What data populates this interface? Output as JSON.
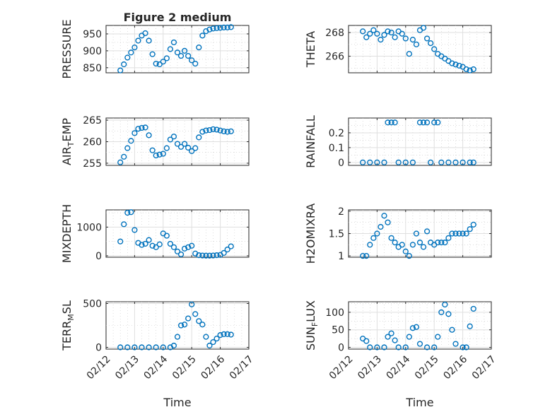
{
  "figure": {
    "title": "Figure 2 medium",
    "xlabel": "Time"
  },
  "colors": {
    "series": "#0072bd",
    "axis": "#262626"
  },
  "chart_data": [
    {
      "id": "pressure",
      "type": "scatter",
      "ylabel": "PRESSURE",
      "ylabel_sub": "",
      "xlim": [
        "02/12",
        "02/17"
      ],
      "ylim": [
        835,
        975
      ],
      "yticks": [
        850,
        900,
        950
      ],
      "xticks": [
        "02/12",
        "02/13",
        "02/14",
        "02/15",
        "02/16",
        "02/17"
      ],
      "show_xticklabels": false,
      "x": [
        "02/12 12:00",
        "02/12 15:00",
        "02/12 18:00",
        "02/12 21:00",
        "02/13 00:00",
        "02/13 03:00",
        "02/13 06:00",
        "02/13 09:00",
        "02/13 12:00",
        "02/13 15:00",
        "02/13 18:00",
        "02/13 21:00",
        "02/14 00:00",
        "02/14 03:00",
        "02/14 06:00",
        "02/14 09:00",
        "02/14 12:00",
        "02/14 15:00",
        "02/14 18:00",
        "02/14 21:00",
        "02/15 00:00",
        "02/15 03:00",
        "02/15 06:00",
        "02/15 09:00",
        "02/15 12:00",
        "02/15 15:00",
        "02/15 18:00",
        "02/15 21:00",
        "02/16 00:00",
        "02/16 03:00",
        "02/16 06:00",
        "02/16 09:00"
      ],
      "y": [
        842,
        860,
        880,
        895,
        910,
        930,
        945,
        952,
        930,
        890,
        862,
        860,
        868,
        878,
        905,
        925,
        895,
        885,
        900,
        885,
        872,
        862,
        910,
        945,
        958,
        963,
        966,
        967,
        968,
        969,
        969,
        970
      ]
    },
    {
      "id": "theta",
      "type": "scatter",
      "ylabel": "THETA",
      "ylabel_sub": "",
      "xlim": [
        "02/12",
        "02/17"
      ],
      "ylim": [
        264.6,
        268.6
      ],
      "yticks": [
        266,
        268
      ],
      "xticks": [
        "02/12",
        "02/13",
        "02/14",
        "02/15",
        "02/16",
        "02/17"
      ],
      "show_xticklabels": false,
      "x": [
        "02/12 12:00",
        "02/12 15:00",
        "02/12 18:00",
        "02/12 21:00",
        "02/13 00:00",
        "02/13 03:00",
        "02/13 06:00",
        "02/13 09:00",
        "02/13 12:00",
        "02/13 15:00",
        "02/13 18:00",
        "02/13 21:00",
        "02/14 00:00",
        "02/14 03:00",
        "02/14 06:00",
        "02/14 09:00",
        "02/14 12:00",
        "02/14 15:00",
        "02/14 18:00",
        "02/14 21:00",
        "02/15 00:00",
        "02/15 03:00",
        "02/15 06:00",
        "02/15 09:00",
        "02/15 12:00",
        "02/15 15:00",
        "02/15 18:00",
        "02/15 21:00",
        "02/16 00:00",
        "02/16 03:00",
        "02/16 06:00",
        "02/16 09:00"
      ],
      "y": [
        268.1,
        267.6,
        267.9,
        268.2,
        267.9,
        267.4,
        267.8,
        268.1,
        268.0,
        267.6,
        268.1,
        267.9,
        267.5,
        266.2,
        267.4,
        267.0,
        268.2,
        268.4,
        267.5,
        267.1,
        266.6,
        266.2,
        266.0,
        265.8,
        265.6,
        265.4,
        265.3,
        265.2,
        265.1,
        264.9,
        264.8,
        264.9
      ]
    },
    {
      "id": "air-temp",
      "type": "scatter",
      "ylabel": "AIR",
      "ylabel_sub": "T",
      "ylabel_tail": "EMP",
      "xlim": [
        "02/12",
        "02/17"
      ],
      "ylim": [
        254.5,
        265.5
      ],
      "yticks": [
        255,
        260,
        265
      ],
      "xticks": [
        "02/12",
        "02/13",
        "02/14",
        "02/15",
        "02/16",
        "02/17"
      ],
      "show_xticklabels": false,
      "x": [
        "02/12 12:00",
        "02/12 15:00",
        "02/12 18:00",
        "02/12 21:00",
        "02/13 00:00",
        "02/13 03:00",
        "02/13 06:00",
        "02/13 09:00",
        "02/13 12:00",
        "02/13 15:00",
        "02/13 18:00",
        "02/13 21:00",
        "02/14 00:00",
        "02/14 03:00",
        "02/14 06:00",
        "02/14 09:00",
        "02/14 12:00",
        "02/14 15:00",
        "02/14 18:00",
        "02/14 21:00",
        "02/15 00:00",
        "02/15 03:00",
        "02/15 06:00",
        "02/15 09:00",
        "02/15 12:00",
        "02/15 15:00",
        "02/15 18:00",
        "02/15 21:00",
        "02/16 00:00",
        "02/16 03:00",
        "02/16 06:00",
        "02/16 09:00"
      ],
      "y": [
        255.2,
        256.5,
        258.5,
        260.2,
        262.0,
        263.0,
        263.2,
        263.3,
        261.5,
        258.0,
        256.8,
        257.0,
        257.2,
        258.5,
        260.5,
        261.2,
        259.5,
        258.8,
        259.5,
        258.6,
        257.8,
        258.5,
        261.0,
        262.3,
        262.6,
        262.7,
        262.9,
        262.8,
        262.6,
        262.4,
        262.3,
        262.4
      ]
    },
    {
      "id": "rainfall",
      "type": "scatter",
      "ylabel": "RAINFALL",
      "ylabel_sub": "",
      "xlim": [
        "02/12",
        "02/17"
      ],
      "ylim": [
        -0.02,
        0.3
      ],
      "yticks": [
        0,
        0.1,
        0.2
      ],
      "xticks": [
        "02/12",
        "02/13",
        "02/14",
        "02/15",
        "02/16",
        "02/17"
      ],
      "show_xticklabels": false,
      "x": [
        "02/12 12:00",
        "02/12 18:00",
        "02/13 00:00",
        "02/13 06:00",
        "02/13 09:00",
        "02/13 12:00",
        "02/13 15:00",
        "02/13 18:00",
        "02/14 00:00",
        "02/14 06:00",
        "02/14 12:00",
        "02/14 15:00",
        "02/14 18:00",
        "02/14 21:00",
        "02/15 00:00",
        "02/15 03:00",
        "02/15 06:00",
        "02/15 12:00",
        "02/15 18:00",
        "02/16 00:00",
        "02/16 06:00",
        "02/16 09:00"
      ],
      "y": [
        0,
        0,
        0,
        0,
        0.27,
        0.27,
        0.27,
        0,
        0,
        0,
        0.27,
        0.27,
        0.27,
        0,
        0.27,
        0.27,
        0,
        0,
        0,
        0,
        0,
        0
      ]
    },
    {
      "id": "mixdepth",
      "type": "scatter",
      "ylabel": "MIXDEPTH",
      "ylabel_sub": "",
      "xlim": [
        "02/12",
        "02/17"
      ],
      "ylim": [
        -50,
        1600
      ],
      "yticks": [
        0,
        1000
      ],
      "xticks": [
        "02/12",
        "02/13",
        "02/14",
        "02/15",
        "02/16",
        "02/17"
      ],
      "show_xticklabels": false,
      "x": [
        "02/12 12:00",
        "02/12 15:00",
        "02/12 18:00",
        "02/12 21:00",
        "02/13 00:00",
        "02/13 03:00",
        "02/13 06:00",
        "02/13 09:00",
        "02/13 12:00",
        "02/13 15:00",
        "02/13 18:00",
        "02/13 21:00",
        "02/14 00:00",
        "02/14 03:00",
        "02/14 06:00",
        "02/14 09:00",
        "02/14 12:00",
        "02/14 15:00",
        "02/14 18:00",
        "02/14 21:00",
        "02/15 00:00",
        "02/15 03:00",
        "02/15 06:00",
        "02/15 09:00",
        "02/15 12:00",
        "02/15 15:00",
        "02/15 18:00",
        "02/15 21:00",
        "02/16 00:00",
        "02/16 03:00",
        "02/16 06:00",
        "02/16 09:00"
      ],
      "y": [
        500,
        1100,
        1500,
        1520,
        900,
        450,
        380,
        420,
        550,
        350,
        300,
        400,
        780,
        700,
        420,
        300,
        150,
        50,
        250,
        300,
        350,
        80,
        20,
        10,
        5,
        5,
        10,
        20,
        30,
        100,
        220,
        330
      ]
    },
    {
      "id": "h2omixra",
      "type": "scatter",
      "ylabel": "H2OMIXRA",
      "ylabel_sub": "",
      "xlim": [
        "02/12",
        "02/17"
      ],
      "ylim": [
        0.97,
        2.03
      ],
      "yticks": [
        1,
        1.5,
        2
      ],
      "xticks": [
        "02/12",
        "02/13",
        "02/14",
        "02/15",
        "02/16",
        "02/17"
      ],
      "show_xticklabels": false,
      "x": [
        "02/12 12:00",
        "02/12 15:00",
        "02/12 18:00",
        "02/12 21:00",
        "02/13 00:00",
        "02/13 03:00",
        "02/13 06:00",
        "02/13 09:00",
        "02/13 12:00",
        "02/13 15:00",
        "02/13 18:00",
        "02/13 21:00",
        "02/14 00:00",
        "02/14 03:00",
        "02/14 06:00",
        "02/14 09:00",
        "02/14 12:00",
        "02/14 15:00",
        "02/14 18:00",
        "02/14 21:00",
        "02/15 00:00",
        "02/15 03:00",
        "02/15 06:00",
        "02/15 09:00",
        "02/15 12:00",
        "02/15 15:00",
        "02/15 18:00",
        "02/15 21:00",
        "02/16 00:00",
        "02/16 03:00",
        "02/16 06:00",
        "02/16 09:00"
      ],
      "y": [
        1.0,
        1.0,
        1.25,
        1.4,
        1.5,
        1.65,
        1.9,
        1.75,
        1.4,
        1.3,
        1.2,
        1.25,
        1.1,
        1.0,
        1.25,
        1.5,
        1.3,
        1.2,
        1.55,
        1.3,
        1.25,
        1.3,
        1.3,
        1.3,
        1.4,
        1.5,
        1.5,
        1.5,
        1.5,
        1.5,
        1.6,
        1.7
      ]
    },
    {
      "id": "terr-msl",
      "type": "scatter",
      "ylabel": "TERR",
      "ylabel_sub": "M",
      "ylabel_tail": "SL",
      "xlim": [
        "02/12",
        "02/17"
      ],
      "ylim": [
        -20,
        520
      ],
      "yticks": [
        0,
        500
      ],
      "xticks": [
        "02/12",
        "02/13",
        "02/14",
        "02/15",
        "02/16",
        "02/17"
      ],
      "show_xticklabels": true,
      "x": [
        "02/12 12:00",
        "02/12 18:00",
        "02/13 00:00",
        "02/13 06:00",
        "02/13 12:00",
        "02/13 18:00",
        "02/14 00:00",
        "02/14 06:00",
        "02/14 09:00",
        "02/14 12:00",
        "02/14 15:00",
        "02/14 18:00",
        "02/14 21:00",
        "02/15 00:00",
        "02/15 03:00",
        "02/15 06:00",
        "02/15 09:00",
        "02/15 12:00",
        "02/15 15:00",
        "02/15 18:00",
        "02/15 21:00",
        "02/16 00:00",
        "02/16 03:00",
        "02/16 06:00",
        "02/16 09:00"
      ],
      "y": [
        0,
        0,
        0,
        0,
        0,
        0,
        0,
        0,
        20,
        120,
        250,
        260,
        330,
        490,
        380,
        300,
        260,
        120,
        20,
        60,
        100,
        140,
        150,
        150,
        145
      ]
    },
    {
      "id": "sun-flux",
      "type": "scatter",
      "ylabel": "SUN",
      "ylabel_sub": "F",
      "ylabel_tail": "LUX",
      "xlim": [
        "02/12",
        "02/17"
      ],
      "ylim": [
        -5,
        130
      ],
      "yticks": [
        0,
        50,
        100
      ],
      "xticks": [
        "02/12",
        "02/13",
        "02/14",
        "02/15",
        "02/16",
        "02/17"
      ],
      "show_xticklabels": true,
      "x": [
        "02/12 12:00",
        "02/12 15:00",
        "02/12 18:00",
        "02/13 00:00",
        "02/13 06:00",
        "02/13 09:00",
        "02/13 12:00",
        "02/13 15:00",
        "02/13 18:00",
        "02/14 00:00",
        "02/14 03:00",
        "02/14 06:00",
        "02/14 09:00",
        "02/14 12:00",
        "02/14 18:00",
        "02/15 00:00",
        "02/15 03:00",
        "02/15 06:00",
        "02/15 09:00",
        "02/15 12:00",
        "02/15 15:00",
        "02/15 18:00",
        "02/16 00:00",
        "02/16 03:00",
        "02/16 06:00",
        "02/16 09:00"
      ],
      "y": [
        25,
        18,
        0,
        0,
        0,
        30,
        40,
        20,
        0,
        0,
        30,
        55,
        58,
        10,
        0,
        0,
        30,
        100,
        122,
        95,
        50,
        10,
        0,
        0,
        60,
        110
      ]
    }
  ]
}
